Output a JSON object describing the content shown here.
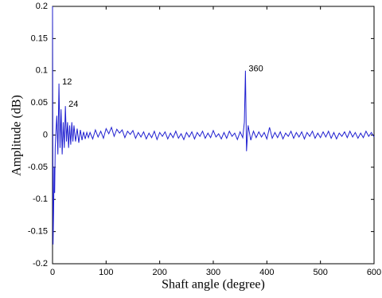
{
  "chart_data": {
    "type": "line",
    "xlabel": "Shaft angle (degree)",
    "ylabel": "Amplitude (dB)",
    "xlim": [
      0,
      600
    ],
    "ylim": [
      -0.2,
      0.2
    ],
    "xticks": [
      0,
      100,
      200,
      300,
      400,
      500,
      600
    ],
    "yticks": [
      -0.2,
      -0.15,
      -0.1,
      -0.05,
      0,
      0.05,
      0.1,
      0.15,
      0.2
    ],
    "grid": false,
    "x": [
      0,
      1,
      2,
      3,
      4,
      5,
      6,
      8,
      10,
      12,
      14,
      16,
      18,
      20,
      22,
      24,
      26,
      28,
      30,
      32,
      34,
      36,
      38,
      40,
      43,
      46,
      49,
      52,
      55,
      58,
      61,
      64,
      67,
      70,
      75,
      80,
      85,
      90,
      95,
      100,
      105,
      110,
      115,
      120,
      125,
      130,
      135,
      140,
      145,
      150,
      155,
      160,
      165,
      170,
      175,
      180,
      185,
      190,
      195,
      200,
      205,
      210,
      215,
      220,
      225,
      230,
      235,
      240,
      245,
      250,
      255,
      260,
      265,
      270,
      275,
      280,
      285,
      290,
      295,
      300,
      305,
      310,
      315,
      320,
      325,
      330,
      335,
      340,
      345,
      350,
      355,
      358,
      360,
      362,
      365,
      370,
      375,
      380,
      385,
      390,
      395,
      400,
      405,
      410,
      415,
      420,
      425,
      430,
      435,
      440,
      445,
      450,
      455,
      460,
      465,
      470,
      475,
      480,
      485,
      490,
      495,
      500,
      505,
      510,
      515,
      520,
      525,
      530,
      535,
      540,
      545,
      550,
      555,
      560,
      565,
      570,
      575,
      580,
      585,
      590,
      595,
      600
    ],
    "series": [
      {
        "name": "Amplitude",
        "color": "#1f1fd0",
        "values": [
          0.2,
          -0.17,
          -0.12,
          -0.05,
          -0.09,
          -0.02,
          0.0,
          0.03,
          -0.03,
          0.08,
          -0.02,
          0.04,
          -0.03,
          0.02,
          -0.02,
          0.045,
          -0.01,
          0.02,
          -0.02,
          0.015,
          -0.015,
          0.02,
          -0.01,
          0.015,
          -0.01,
          0.01,
          -0.012,
          0.008,
          -0.008,
          0.005,
          -0.006,
          0.004,
          -0.004,
          0.004,
          -0.006,
          0.008,
          -0.003,
          0.006,
          -0.005,
          0.01,
          0.002,
          0.012,
          -0.002,
          0.009,
          0.003,
          0.008,
          -0.004,
          0.006,
          0.001,
          0.007,
          -0.005,
          0.004,
          -0.003,
          0.005,
          -0.006,
          0.003,
          -0.004,
          0.006,
          -0.007,
          0.004,
          -0.002,
          0.005,
          -0.006,
          0.003,
          -0.004,
          0.006,
          -0.005,
          0.002,
          -0.007,
          0.004,
          -0.003,
          0.005,
          -0.006,
          0.004,
          -0.002,
          0.006,
          -0.005,
          0.003,
          -0.004,
          0.007,
          -0.003,
          0.002,
          -0.006,
          0.004,
          -0.005,
          0.006,
          -0.002,
          0.003,
          -0.007,
          0.005,
          -0.004,
          0.02,
          0.1,
          -0.025,
          0.015,
          -0.008,
          0.006,
          -0.004,
          0.005,
          -0.003,
          0.004,
          -0.006,
          0.012,
          -0.005,
          0.004,
          -0.004,
          0.005,
          -0.006,
          0.003,
          -0.002,
          0.006,
          -0.005,
          0.004,
          -0.003,
          0.005,
          -0.006,
          0.004,
          -0.002,
          0.006,
          -0.005,
          0.003,
          -0.004,
          0.005,
          -0.003,
          0.006,
          -0.005,
          0.004,
          -0.006,
          0.003,
          -0.002,
          0.005,
          -0.004,
          0.006,
          -0.003,
          0.004,
          -0.005,
          0.003,
          -0.004,
          0.006,
          -0.002,
          0.004,
          -0.003
        ]
      }
    ],
    "annotations": [
      {
        "text": "12",
        "x": 12,
        "y": 0.08
      },
      {
        "text": "24",
        "x": 24,
        "y": 0.045
      },
      {
        "text": "360",
        "x": 360,
        "y": 0.1
      }
    ]
  }
}
